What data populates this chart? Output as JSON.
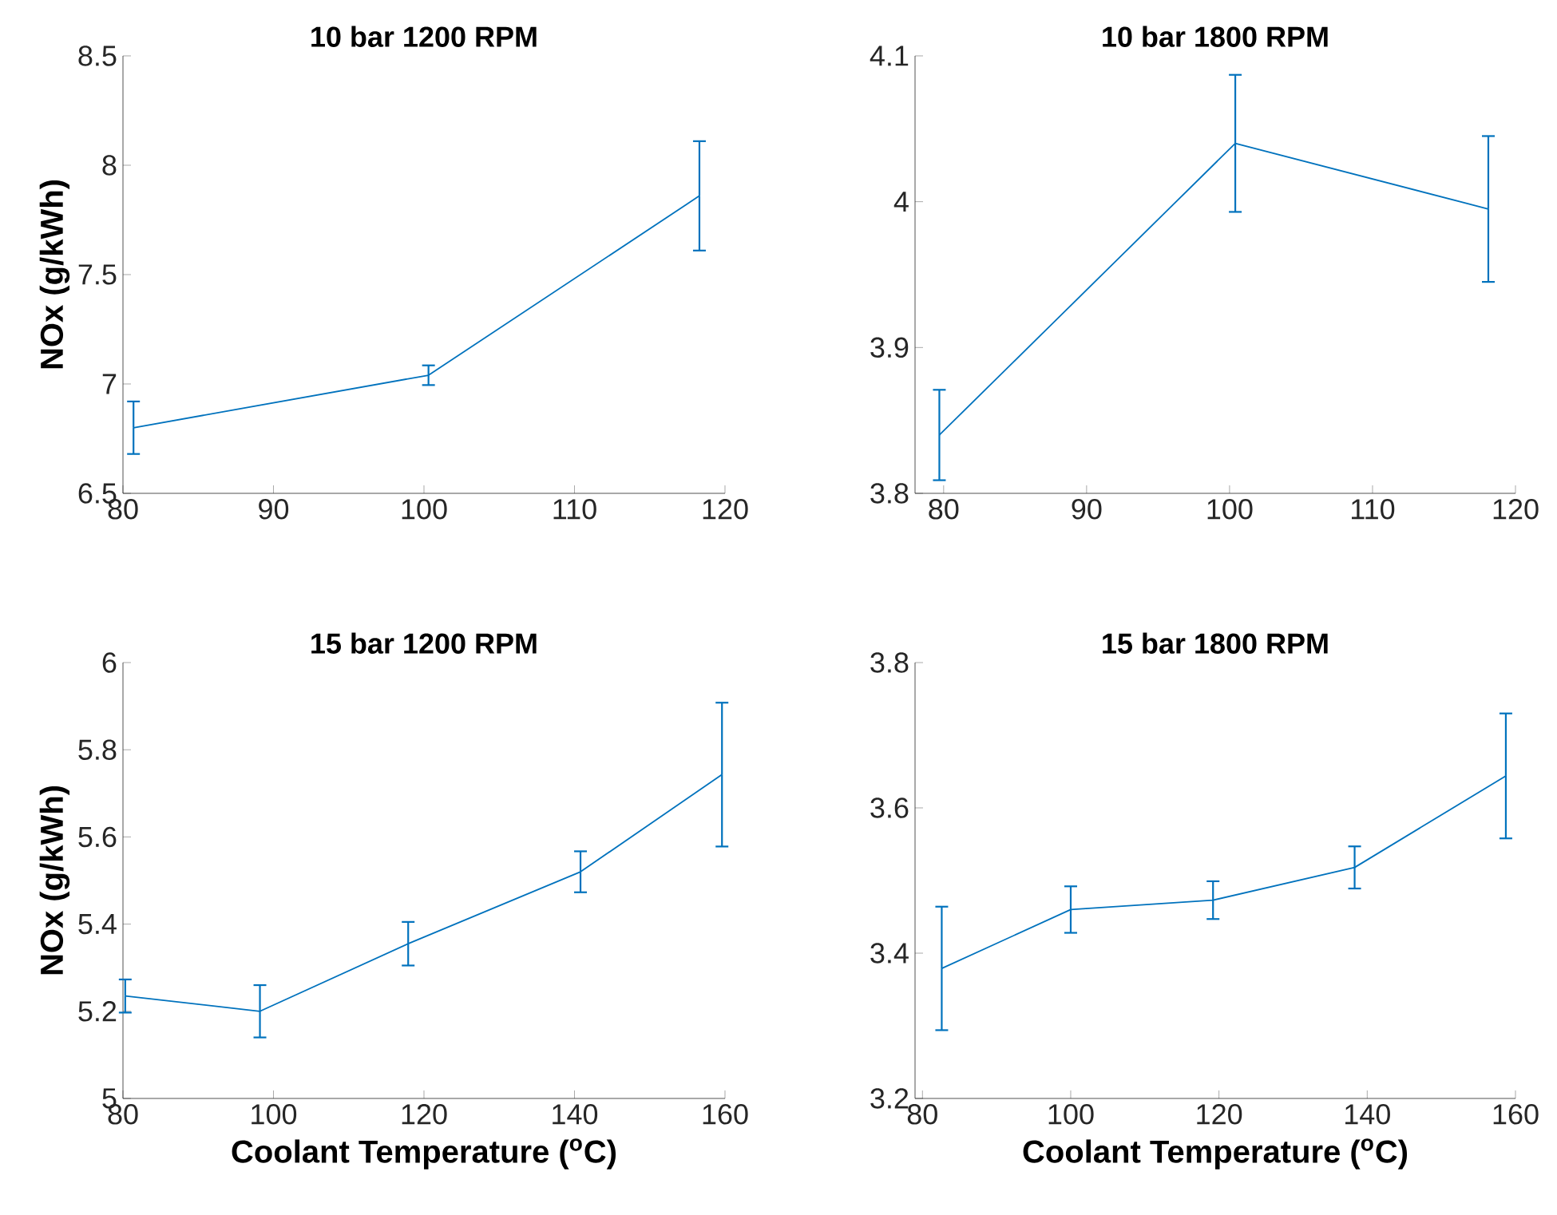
{
  "chart_data": [
    {
      "type": "line",
      "title": "10 bar 1200 RPM",
      "ylabel": "NOx (g/kWh)",
      "x": [
        80.7,
        100.3,
        118.3
      ],
      "marker": "none",
      "line_style": "solid",
      "series": [
        {
          "color": "#0072bd",
          "values": [
            6.8,
            7.04,
            7.86
          ],
          "errors": [
            0.12,
            0.045,
            0.25
          ]
        }
      ],
      "xlim": [
        80,
        120
      ],
      "ylim": [
        6.5,
        8.5
      ],
      "xticks": [
        80,
        90,
        100,
        110,
        120
      ],
      "yticks": [
        6.5,
        7,
        7.5,
        8,
        8.5
      ]
    },
    {
      "type": "line",
      "title": "10 bar 1800 RPM",
      "x": [
        79.7,
        100.4,
        118.1
      ],
      "marker": "none",
      "line_style": "solid",
      "series": [
        {
          "color": "#0072bd",
          "values": [
            3.84,
            4.04,
            3.995
          ],
          "errors": [
            0.031,
            0.047,
            0.05
          ]
        }
      ],
      "xlim": [
        78,
        120
      ],
      "ylim": [
        3.8,
        4.1
      ],
      "xticks": [
        80,
        90,
        100,
        110,
        120
      ],
      "yticks": [
        3.8,
        3.9,
        4,
        4.1
      ]
    },
    {
      "type": "line",
      "title": "15 bar 1200 RPM",
      "xlabel": "Coolant Temperature ($^{o}$C)",
      "ylabel": "NOx (g/kWh)",
      "x": [
        80.3,
        98.2,
        117.9,
        140.8,
        159.6
      ],
      "marker": "none",
      "line_style": "solid",
      "series": [
        {
          "color": "#0072bd",
          "values": [
            5.235,
            5.2,
            5.355,
            5.52,
            5.743
          ],
          "errors": [
            0.038,
            0.06,
            0.05,
            0.047,
            0.165
          ]
        }
      ],
      "xlim": [
        80,
        160
      ],
      "ylim": [
        5,
        6
      ],
      "xticks": [
        80,
        100,
        120,
        140,
        160
      ],
      "yticks": [
        5,
        5.2,
        5.4,
        5.6,
        5.8,
        6
      ]
    },
    {
      "type": "line",
      "title": "15 bar 1800 RPM",
      "xlabel": "Coolant Temperature ($^{o}$C)",
      "x": [
        82.6,
        100,
        119.2,
        138.3,
        158.7
      ],
      "marker": "none",
      "line_style": "solid",
      "series": [
        {
          "color": "#0072bd",
          "values": [
            3.379,
            3.46,
            3.473,
            3.518,
            3.644
          ],
          "errors": [
            0.085,
            0.032,
            0.026,
            0.029,
            0.086
          ]
        }
      ],
      "xlim": [
        79,
        160
      ],
      "ylim": [
        3.2,
        3.8
      ],
      "xticks": [
        80,
        100,
        120,
        140,
        160
      ],
      "yticks": [
        3.2,
        3.4,
        3.6,
        3.8
      ]
    }
  ]
}
